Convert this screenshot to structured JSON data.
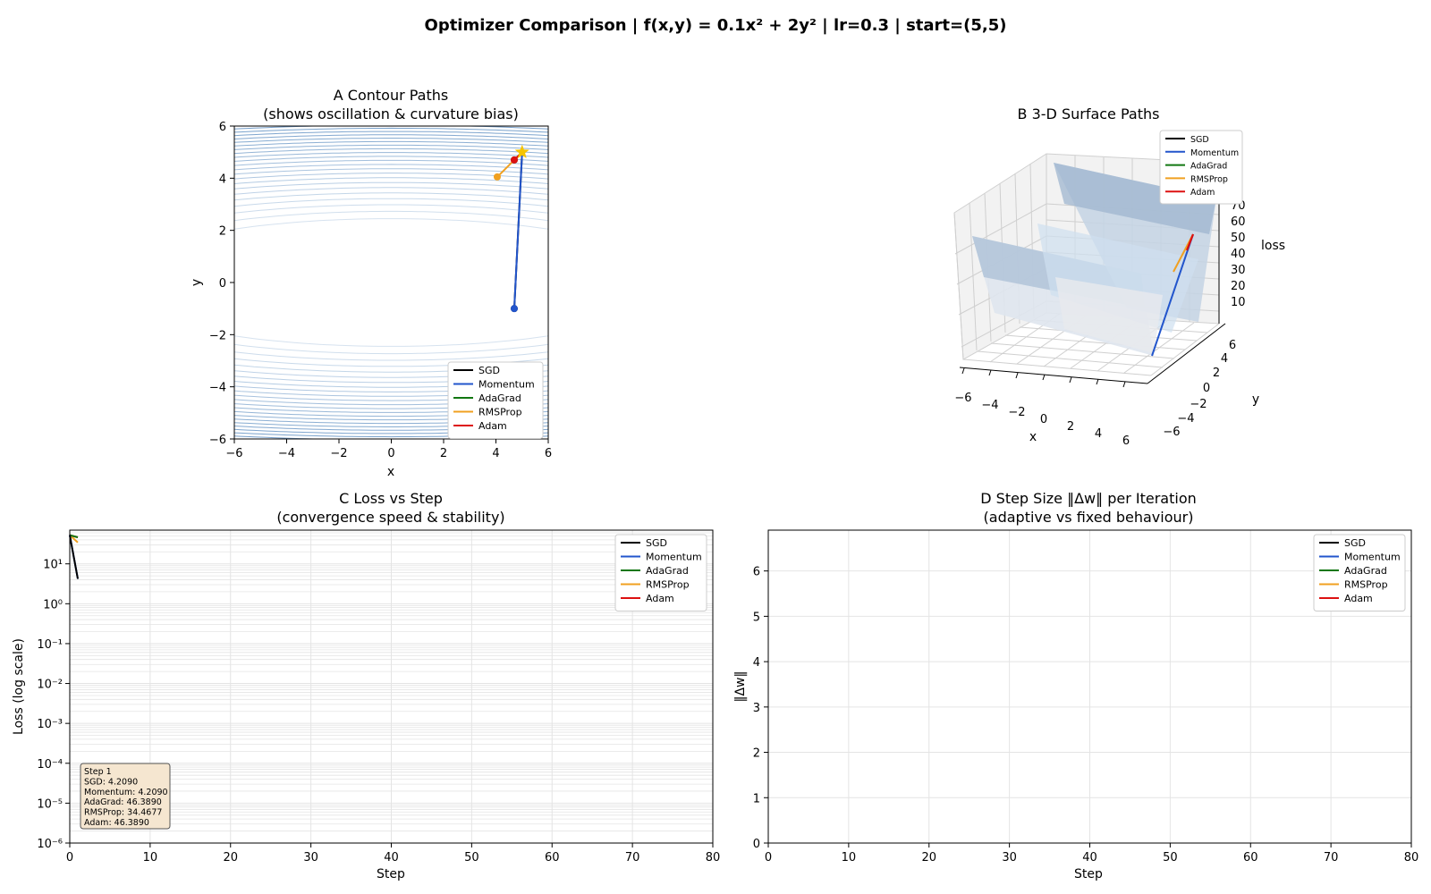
{
  "figure": {
    "suptitle": "Optimizer Comparison  |  f(x,y) = 0.1x² + 2y²  |  lr=0.3  |  start=(5,5)"
  },
  "colors": {
    "SGD": "#000000",
    "Momentum": "#2255cc",
    "AdaGrad": "#117711",
    "RMSProp": "#f0a020",
    "Adam": "#dd1111",
    "contour": "#5a8cc0",
    "info_bg": "#f5e6d0",
    "start_marker": "#f5c400"
  },
  "chart_data": [
    {
      "panel": "A",
      "type": "line",
      "title": "A  Contour Paths",
      "subtitle": "(shows oscillation & curvature bias)",
      "xlabel": "x",
      "ylabel": "y",
      "xlim": [
        -6,
        6
      ],
      "ylim": [
        -6,
        6
      ],
      "xticks": [
        "−6",
        "−4",
        "−2",
        "0",
        "2",
        "4",
        "6"
      ],
      "yticks": [
        "−6",
        "−4",
        "−2",
        "0",
        "2",
        "4",
        "6"
      ],
      "legend": "lower-right",
      "legend_entries": [
        "SGD",
        "Momentum",
        "AdaGrad",
        "RMSProp",
        "Adam"
      ],
      "start_point": [
        5,
        5
      ],
      "series": [
        {
          "name": "SGD",
          "x": [
            5.0,
            4.7
          ],
          "y": [
            5.0,
            -1.0
          ]
        },
        {
          "name": "Momentum",
          "x": [
            5.0,
            4.7
          ],
          "y": [
            5.0,
            -1.0
          ]
        },
        {
          "name": "AdaGrad",
          "x": [
            5.0,
            4.7
          ],
          "y": [
            5.0,
            4.7
          ]
        },
        {
          "name": "RMSProp",
          "x": [
            5.0,
            4.05
          ],
          "y": [
            5.0,
            4.05
          ]
        },
        {
          "name": "Adam",
          "x": [
            5.0,
            4.7
          ],
          "y": [
            5.0,
            4.7
          ]
        }
      ]
    },
    {
      "panel": "B",
      "type": "line",
      "title": "B  3-D Surface Paths",
      "xlabel": "x",
      "ylabel": "y",
      "zlabel": "loss",
      "xticks": [
        "−6",
        "−4",
        "−2",
        "0",
        "2",
        "4",
        "6"
      ],
      "yticks": [
        "−6",
        "−4",
        "−2",
        "0",
        "2",
        "4",
        "6"
      ],
      "zticks": [
        "10",
        "20",
        "30",
        "40",
        "50",
        "60",
        "70"
      ],
      "legend": "top-right",
      "legend_entries": [
        "SGD",
        "Momentum",
        "AdaGrad",
        "RMSProp",
        "Adam"
      ]
    },
    {
      "panel": "C",
      "type": "line",
      "title": "C  Loss vs Step",
      "subtitle": "(convergence speed & stability)",
      "xlabel": "Step",
      "ylabel": "Loss (log scale)",
      "xlim": [
        0,
        80
      ],
      "ylim": [
        1e-06,
        70
      ],
      "yscale": "log",
      "xticks": [
        "0",
        "10",
        "20",
        "30",
        "40",
        "50",
        "60",
        "70",
        "80"
      ],
      "yticks": [
        "10⁻⁶",
        "10⁻⁵",
        "10⁻⁴",
        "10⁻³",
        "10⁻²",
        "10⁻¹",
        "10⁰",
        "10¹"
      ],
      "grid": true,
      "legend": "top-right",
      "legend_entries": [
        "SGD",
        "Momentum",
        "AdaGrad",
        "RMSProp",
        "Adam"
      ],
      "series": [
        {
          "name": "SGD",
          "x": [
            0,
            1
          ],
          "y": [
            52.5,
            4.209
          ]
        },
        {
          "name": "Momentum",
          "x": [
            0,
            1
          ],
          "y": [
            52.5,
            4.209
          ]
        },
        {
          "name": "AdaGrad",
          "x": [
            0,
            1
          ],
          "y": [
            52.5,
            46.389
          ]
        },
        {
          "name": "RMSProp",
          "x": [
            0,
            1
          ],
          "y": [
            52.5,
            34.4677
          ]
        },
        {
          "name": "Adam",
          "x": [
            0,
            1
          ],
          "y": [
            52.5,
            46.389
          ]
        }
      ],
      "info_box": [
        "Step 1",
        "SGD: 4.2090",
        "Momentum: 4.2090",
        "AdaGrad: 46.3890",
        "RMSProp: 34.4677",
        "Adam: 46.3890"
      ]
    },
    {
      "panel": "D",
      "type": "line",
      "title": "D  Step Size  ‖Δw‖ per Iteration",
      "subtitle": "(adaptive vs fixed behaviour)",
      "xlabel": "Step",
      "ylabel": "‖Δw‖",
      "xlim": [
        0,
        80
      ],
      "ylim": [
        0,
        6.9
      ],
      "xticks": [
        "0",
        "10",
        "20",
        "30",
        "40",
        "50",
        "60",
        "70",
        "80"
      ],
      "yticks": [
        "0",
        "1",
        "2",
        "3",
        "4",
        "5",
        "6"
      ],
      "grid": true,
      "legend": "top-right",
      "legend_entries": [
        "SGD",
        "Momentum",
        "AdaGrad",
        "RMSProp",
        "Adam"
      ],
      "series": []
    }
  ]
}
